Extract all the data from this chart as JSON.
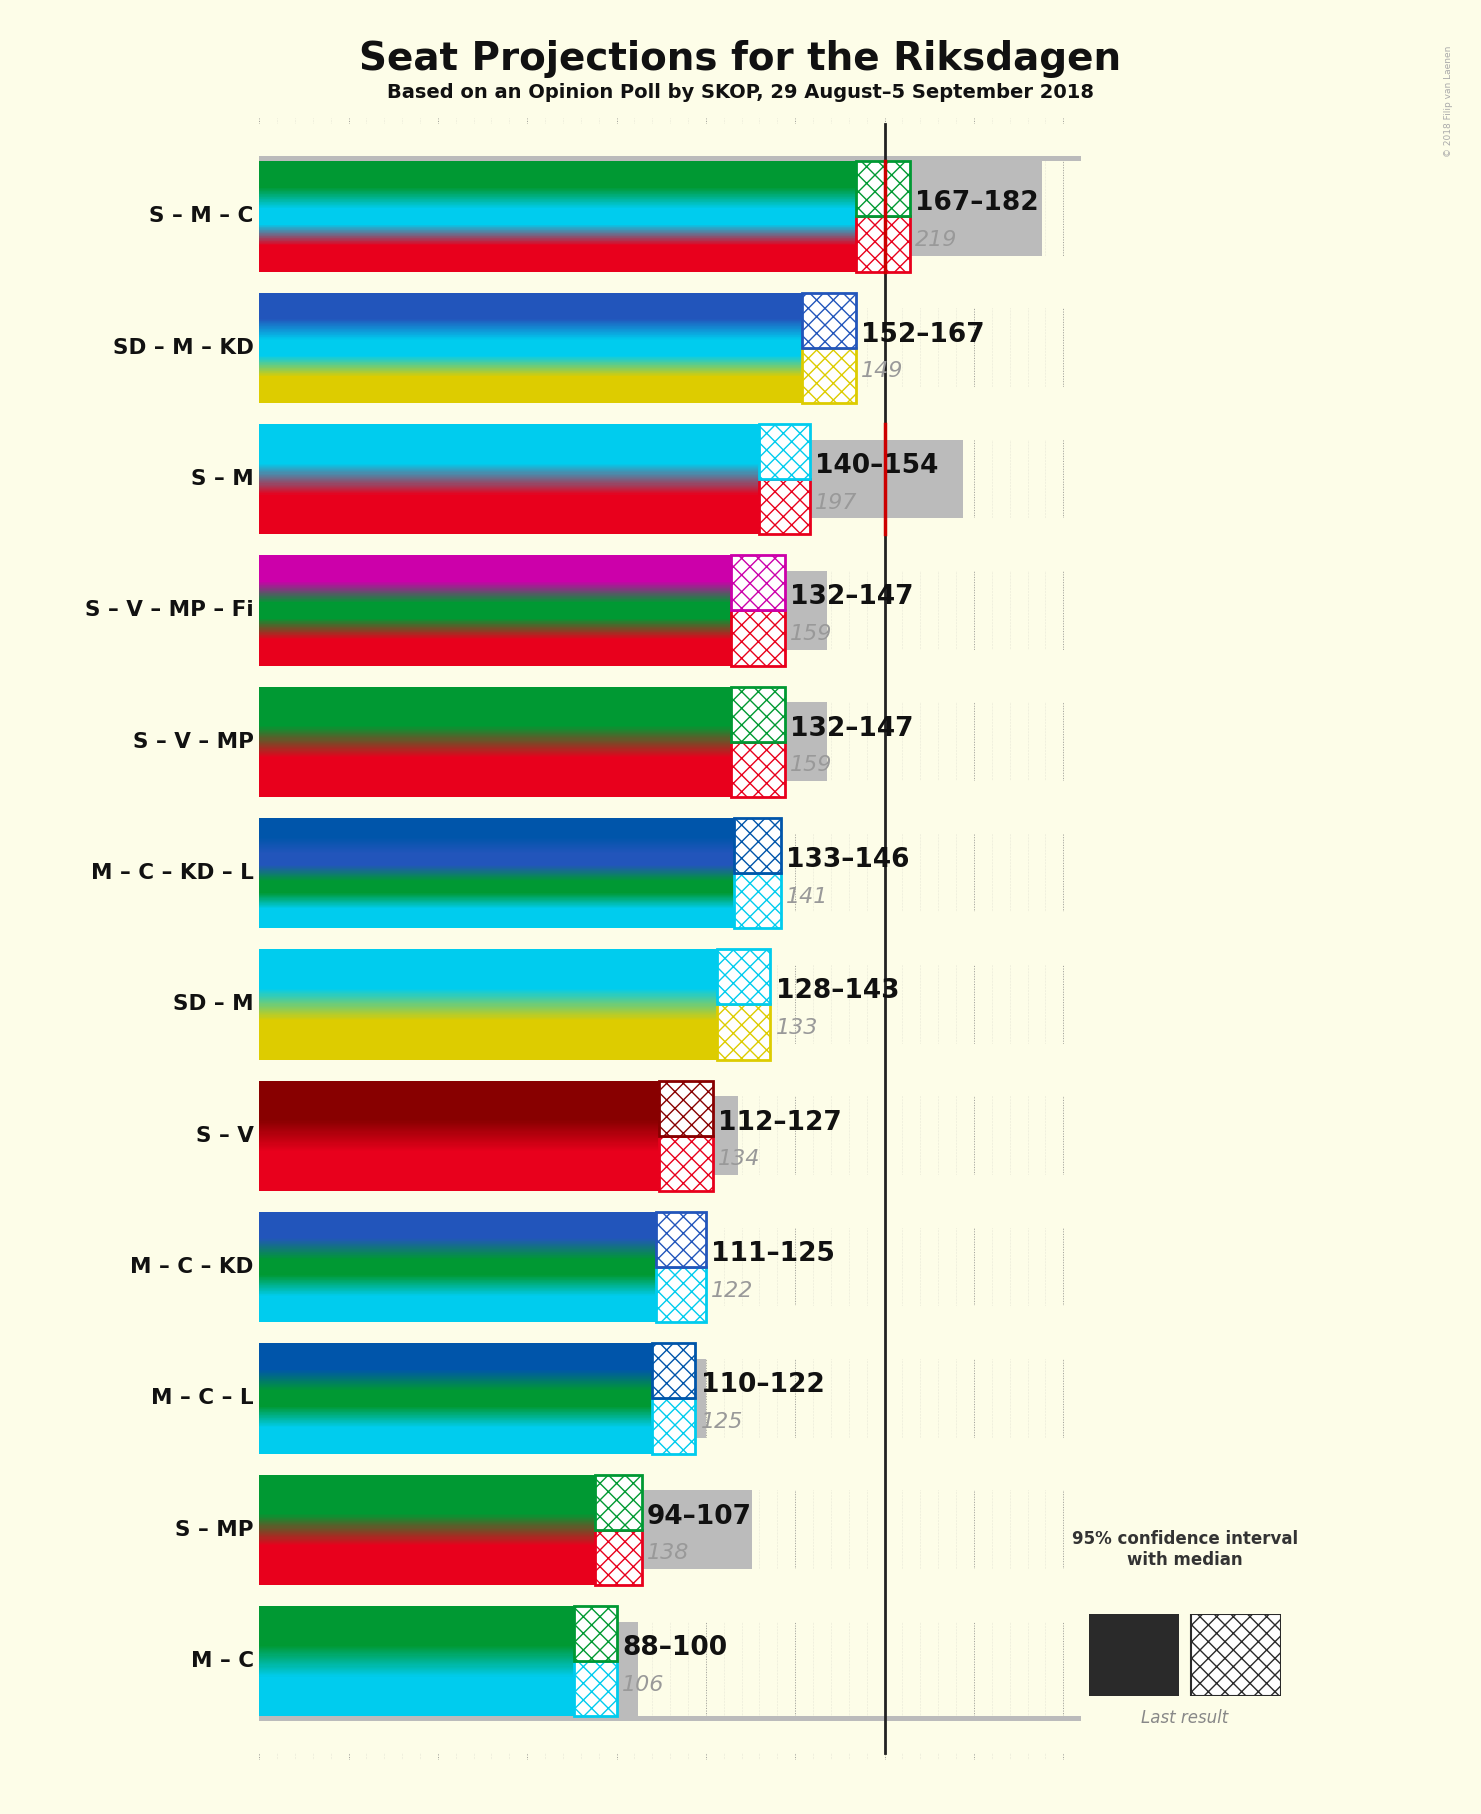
{
  "title": "Seat Projections for the Riksdagen",
  "subtitle": "Based on an Opinion Poll by SKOP, 29 August–5 September 2018",
  "copyright": "© 2018 Filip van Laenen",
  "background_color": "#FDFDE8",
  "majority": 175,
  "x_max": 230,
  "coalitions": [
    {
      "name": "S – M – C",
      "party_colors": [
        "#E8001C",
        "#00CCEE",
        "#009933"
      ],
      "ci_low": 167,
      "ci_high": 182,
      "last_result": 219,
      "ci_hatch_colors": [
        "#E8001C",
        "#009933"
      ],
      "majority_line": true
    },
    {
      "name": "SD – M – KD",
      "party_colors": [
        "#DDCC00",
        "#00CCEE",
        "#2255BB"
      ],
      "ci_low": 152,
      "ci_high": 167,
      "last_result": 149,
      "ci_hatch_colors": [
        "#DDCC00",
        "#2255BB"
      ],
      "majority_line": false
    },
    {
      "name": "S – M",
      "party_colors": [
        "#E8001C",
        "#00CCEE"
      ],
      "ci_low": 140,
      "ci_high": 154,
      "last_result": 197,
      "ci_hatch_colors": [
        "#E8001C",
        "#00CCEE"
      ],
      "majority_line": true
    },
    {
      "name": "S – V – MP – Fi",
      "party_colors": [
        "#E8001C",
        "#009933",
        "#CC00AA"
      ],
      "ci_low": 132,
      "ci_high": 147,
      "last_result": 159,
      "ci_hatch_colors": [
        "#E8001C",
        "#CC00AA"
      ],
      "majority_line": false
    },
    {
      "name": "S – V – MP",
      "party_colors": [
        "#E8001C",
        "#009933"
      ],
      "ci_low": 132,
      "ci_high": 147,
      "last_result": 159,
      "ci_hatch_colors": [
        "#E8001C",
        "#009933"
      ],
      "majority_line": false
    },
    {
      "name": "M – C – KD – L",
      "party_colors": [
        "#00CCEE",
        "#009933",
        "#2255BB",
        "#0055AA"
      ],
      "ci_low": 133,
      "ci_high": 146,
      "last_result": 141,
      "ci_hatch_colors": [
        "#00CCEE",
        "#0055AA"
      ],
      "majority_line": false
    },
    {
      "name": "SD – M",
      "party_colors": [
        "#DDCC00",
        "#00CCEE"
      ],
      "ci_low": 128,
      "ci_high": 143,
      "last_result": 133,
      "ci_hatch_colors": [
        "#DDCC00",
        "#00CCEE"
      ],
      "majority_line": false
    },
    {
      "name": "S – V",
      "party_colors": [
        "#E8001C",
        "#880000"
      ],
      "ci_low": 112,
      "ci_high": 127,
      "last_result": 134,
      "ci_hatch_colors": [
        "#E8001C",
        "#880000"
      ],
      "majority_line": false
    },
    {
      "name": "M – C – KD",
      "party_colors": [
        "#00CCEE",
        "#009933",
        "#2255BB"
      ],
      "ci_low": 111,
      "ci_high": 125,
      "last_result": 122,
      "ci_hatch_colors": [
        "#00CCEE",
        "#2255BB"
      ],
      "majority_line": false
    },
    {
      "name": "M – C – L",
      "party_colors": [
        "#00CCEE",
        "#009933",
        "#0055AA"
      ],
      "ci_low": 110,
      "ci_high": 122,
      "last_result": 125,
      "ci_hatch_colors": [
        "#00CCEE",
        "#0055AA"
      ],
      "majority_line": false
    },
    {
      "name": "S – MP",
      "party_colors": [
        "#E8001C",
        "#009933"
      ],
      "ci_low": 94,
      "ci_high": 107,
      "last_result": 138,
      "ci_hatch_colors": [
        "#E8001C",
        "#009933"
      ],
      "majority_line": false
    },
    {
      "name": "M – C",
      "party_colors": [
        "#00CCEE",
        "#009933"
      ],
      "ci_low": 88,
      "ci_high": 100,
      "last_result": 106,
      "ci_hatch_colors": [
        "#00CCEE",
        "#009933"
      ],
      "majority_line": false
    }
  ]
}
